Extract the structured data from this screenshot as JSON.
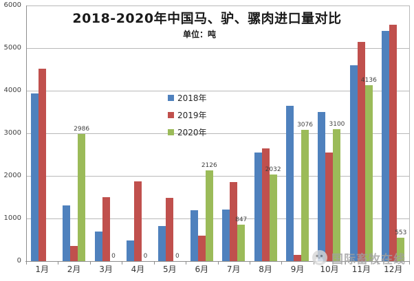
{
  "title": "2018-2020年中国马、驴、骡肉进口量对比",
  "subtitle": "单位：吨",
  "watermark": {
    "text": "国际畜牧在线",
    "icon": "mascot-icon"
  },
  "colors": {
    "s2018": "#4f81bd",
    "s2019": "#c0504d",
    "s2020": "#9bbb59",
    "gridline": "#b8b8b8",
    "axis": "#8c8c8c",
    "tick_text": "#404040",
    "title_text": "#1a1a1a",
    "watermark_text": "#a0a0a0"
  },
  "chart_data": {
    "type": "bar",
    "title": "2018-2020年中国马、驴、骡肉进口量对比",
    "subtitle": "单位：吨",
    "xlabel": "",
    "ylabel": "",
    "ylim": [
      0,
      6000
    ],
    "ytick_step": 1000,
    "grid": true,
    "legend_position": "inside-center-left",
    "categories": [
      "1月",
      "2月",
      "3月",
      "4月",
      "5月",
      "6月",
      "7月",
      "8月",
      "9月",
      "10月",
      "11月",
      "12月"
    ],
    "series": [
      {
        "name": "2018年",
        "color_key": "s2018",
        "show_labels": false,
        "values": [
          3930,
          1300,
          690,
          480,
          820,
          1190,
          1210,
          2550,
          3650,
          3500,
          4600,
          5400
        ]
      },
      {
        "name": "2019年",
        "color_key": "s2019",
        "show_labels": false,
        "values": [
          4520,
          360,
          1500,
          1870,
          1480,
          600,
          1850,
          2640,
          140,
          2550,
          5150,
          5550
        ]
      },
      {
        "name": "2020年",
        "color_key": "s2020",
        "show_labels": true,
        "values": [
          null,
          2986,
          0,
          0,
          0,
          2126,
          847,
          2032,
          3076,
          3100,
          4136,
          553
        ]
      }
    ]
  }
}
